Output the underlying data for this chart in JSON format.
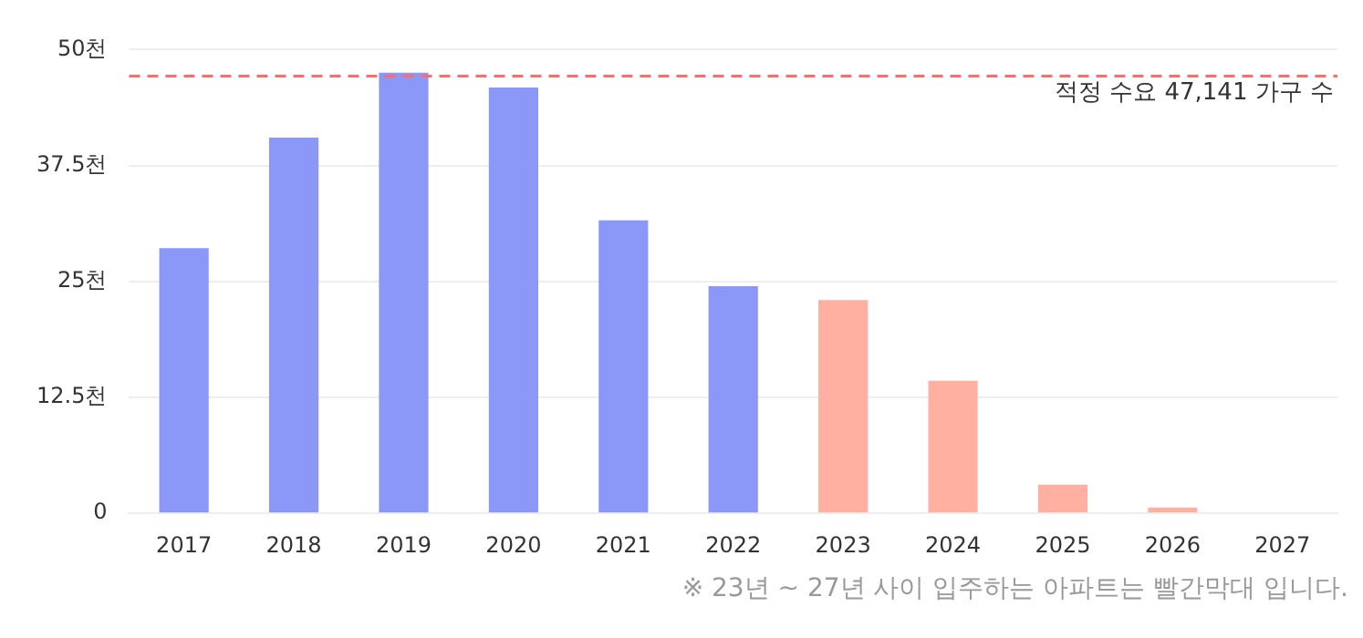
{
  "chart_data": {
    "type": "bar",
    "categories": [
      "2017",
      "2018",
      "2019",
      "2020",
      "2021",
      "2022",
      "2023",
      "2024",
      "2025",
      "2026",
      "2027"
    ],
    "values": [
      28.6,
      40.5,
      47.5,
      45.9,
      31.6,
      24.5,
      23.0,
      14.3,
      3.1,
      0.6,
      0
    ],
    "colors": [
      "#8c98f8",
      "#8c98f8",
      "#8c98f8",
      "#8c98f8",
      "#8c98f8",
      "#8c98f8",
      "#ffb0a0",
      "#ffb0a0",
      "#ffb0a0",
      "#ffb0a0",
      "#ffb0a0"
    ],
    "ylim": [
      0,
      50
    ],
    "yticks": [
      0,
      {
        "value": 12.5,
        "label": "12.5천"
      },
      {
        "value": 25,
        "label": "25천"
      },
      {
        "value": 37.5,
        "label": "37.5천"
      },
      {
        "value": 50,
        "label": "50천"
      }
    ],
    "grid": "y",
    "legend": false,
    "ref_lines": [
      {
        "axis": "y",
        "value": 47.141,
        "label": "적정 수요 47,141 가구 수",
        "color": "#ff6b6b",
        "line_style": "dashed"
      }
    ],
    "annotations": [
      "※ 23년 ~ 27년 사이 입주하는 아파트는 빨간막대 입니다."
    ]
  }
}
